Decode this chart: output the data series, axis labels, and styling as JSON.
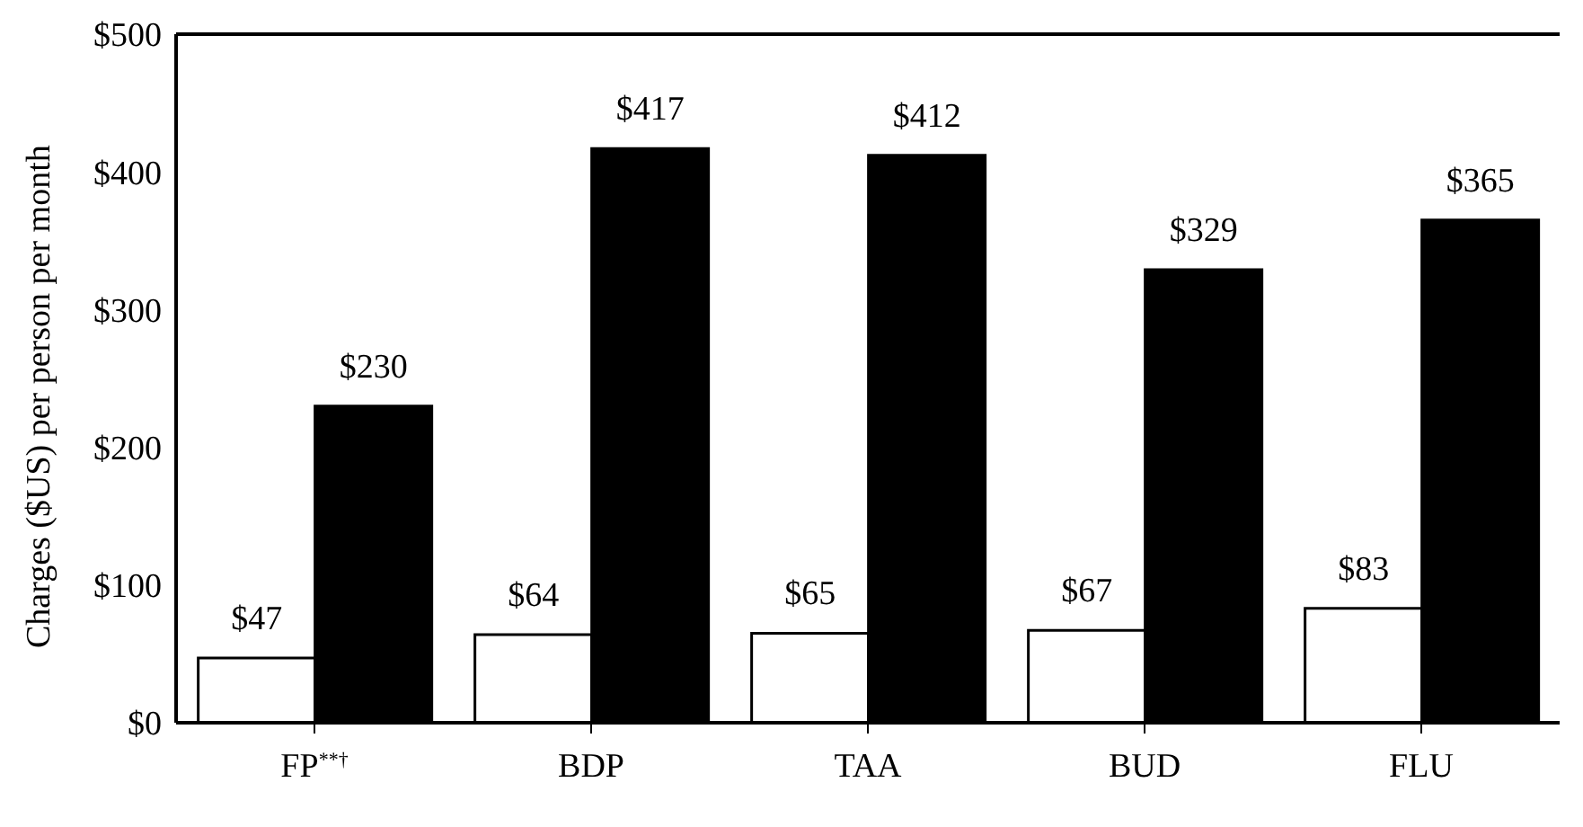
{
  "chart_data": {
    "type": "bar",
    "ylabel": "Charges ($US) per person per month",
    "categories": [
      "FP$^{**†}$",
      "BDP",
      "TAA",
      "BUD",
      "FLU"
    ],
    "series": [
      {
        "color": "#ffffff",
        "values": [
          47,
          64,
          65,
          67,
          83
        ],
        "value_labels": [
          "$47",
          "$64",
          "$65",
          "$67",
          "$83"
        ]
      },
      {
        "color": "#000000",
        "values": [
          230,
          417,
          412,
          329,
          365
        ],
        "value_labels": [
          "$230",
          "$417",
          "$412",
          "$329",
          "$365"
        ]
      }
    ],
    "ylim": [
      0,
      500
    ],
    "yticks": [
      {
        "value": 0,
        "label": "$0"
      },
      {
        "value": 100,
        "label": "$100"
      },
      {
        "value": 200,
        "label": "$200"
      },
      {
        "value": 300,
        "label": "$300"
      },
      {
        "value": 400,
        "label": "$400"
      },
      {
        "value": 500,
        "label": "$500"
      }
    ],
    "grid": false,
    "legend": false
  }
}
